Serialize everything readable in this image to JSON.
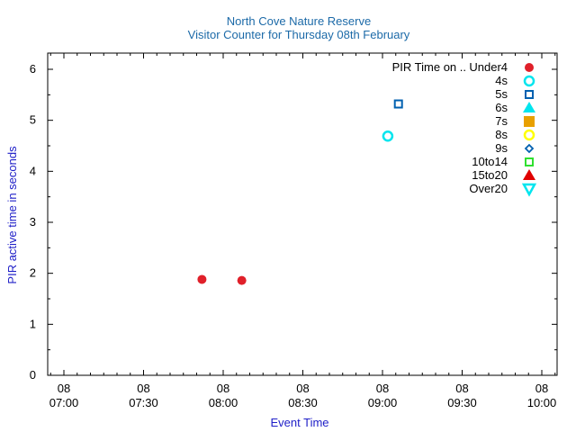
{
  "chart_data": {
    "type": "scatter",
    "title": "North Cove Nature Reserve",
    "subtitle": "Visitor Counter for Thursday 08th February",
    "xlabel": "Event Time",
    "ylabel": "PIR active time in seconds",
    "x_range": [
      "07:00",
      "10:00"
    ],
    "x_ticks": [
      {
        "day": "08",
        "time": "07:00"
      },
      {
        "day": "08",
        "time": "07:30"
      },
      {
        "day": "08",
        "time": "08:00"
      },
      {
        "day": "08",
        "time": "08:30"
      },
      {
        "day": "08",
        "time": "09:00"
      },
      {
        "day": "08",
        "time": "09:30"
      },
      {
        "day": "08",
        "time": "10:00"
      }
    ],
    "ylim": [
      0,
      6.3
    ],
    "y_ticks": [
      "0",
      "1",
      "2",
      "3",
      "4",
      "5",
      "6"
    ],
    "grid": false,
    "legend_title": "PIR Time on ..",
    "legend_position": "top-right",
    "series": [
      {
        "name": "Under4",
        "marker": "circle-filled",
        "color": "#e0202a",
        "points": [
          {
            "x": "07:52",
            "y": 1.88
          },
          {
            "x": "08:07",
            "y": 1.86
          }
        ]
      },
      {
        "name": "4s",
        "marker": "circle-open",
        "color": "#00e5ee",
        "points": [
          {
            "x": "09:02",
            "y": 4.69
          }
        ]
      },
      {
        "name": "5s",
        "marker": "square-open",
        "color": "#0060b0",
        "points": [
          {
            "x": "09:06",
            "y": 5.32
          }
        ]
      },
      {
        "name": "6s",
        "marker": "triangle-up-filled",
        "color": "#00e5ee",
        "points": []
      },
      {
        "name": "7s",
        "marker": "square-filled",
        "color": "#e8a000",
        "points": []
      },
      {
        "name": "8s",
        "marker": "circle-open",
        "color": "#ffff00",
        "points": []
      },
      {
        "name": "9s",
        "marker": "diamond-open",
        "color": "#0060b0",
        "points": []
      },
      {
        "name": "10to14",
        "marker": "square-open",
        "color": "#30e030",
        "points": []
      },
      {
        "name": "15to20",
        "marker": "triangle-up-filled",
        "color": "#e00000",
        "points": []
      },
      {
        "name": "Over20",
        "marker": "triangle-down-open",
        "color": "#00e5ee",
        "points": []
      }
    ]
  }
}
